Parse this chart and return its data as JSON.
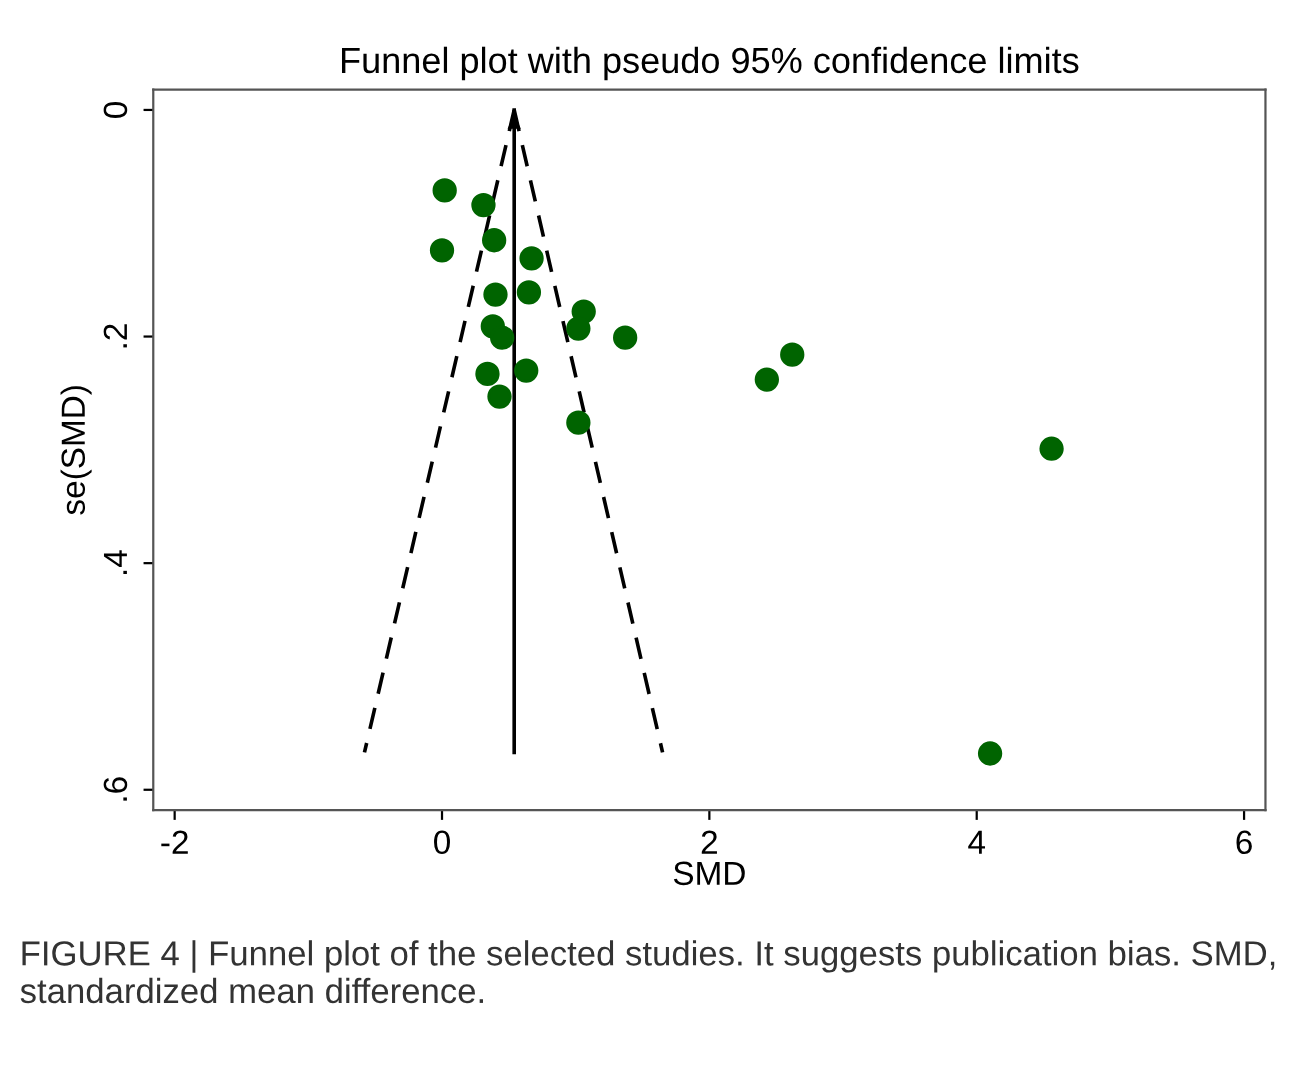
{
  "chart_data": {
    "type": "scatter",
    "title": "Funnel plot with pseudo 95% confidence limits",
    "xlabel": "SMD",
    "ylabel": "se(SMD)",
    "xlim": [
      -2.16,
      6.16
    ],
    "xticks": [
      -2,
      0,
      2,
      4,
      6
    ],
    "ylim": [
      0.618,
      -0.018
    ],
    "yticks": [
      0,
      {
        "value": 0.2,
        "label": ".2"
      },
      {
        "value": 0.4,
        "label": ".4"
      },
      {
        "value": 0.6,
        "label": ".6"
      }
    ],
    "grid": false,
    "marker": "circle",
    "series": [
      {
        "color": "#006400",
        "x": [
          0.02,
          0.31,
          0.39,
          0.0,
          0.67,
          0.4,
          0.65,
          1.06,
          1.02,
          0.38,
          0.45,
          1.37,
          2.62,
          2.43,
          0.34,
          0.63,
          0.43,
          1.02,
          4.56,
          4.1
        ],
        "values": [
          0.071,
          0.084,
          0.115,
          0.124,
          0.131,
          0.163,
          0.161,
          0.178,
          0.193,
          0.191,
          0.201,
          0.201,
          0.216,
          0.238,
          0.233,
          0.23,
          0.253,
          0.276,
          0.299,
          0.568
        ]
      },
      {
        "type": "line",
        "color": "#000000",
        "line_style": "dashed",
        "marker": "none",
        "x": [
          0.54,
          -0.58
        ],
        "values": [
          0.0,
          0.567
        ]
      },
      {
        "type": "line",
        "color": "#000000",
        "line_style": "dashed",
        "marker": "none",
        "x": [
          0.54,
          1.65
        ],
        "values": [
          0.0,
          0.567
        ]
      },
      {
        "type": "line",
        "color": "#000000",
        "line_style": "solid",
        "marker": "none",
        "x": [
          0.54,
          0.54
        ],
        "values": [
          0.567,
          0.0
        ]
      }
    ],
    "annotations": [
      "FIGURE 4 | Funnel plot of the selected studies. It suggests publication bias. SMD, standardized mean difference."
    ]
  }
}
